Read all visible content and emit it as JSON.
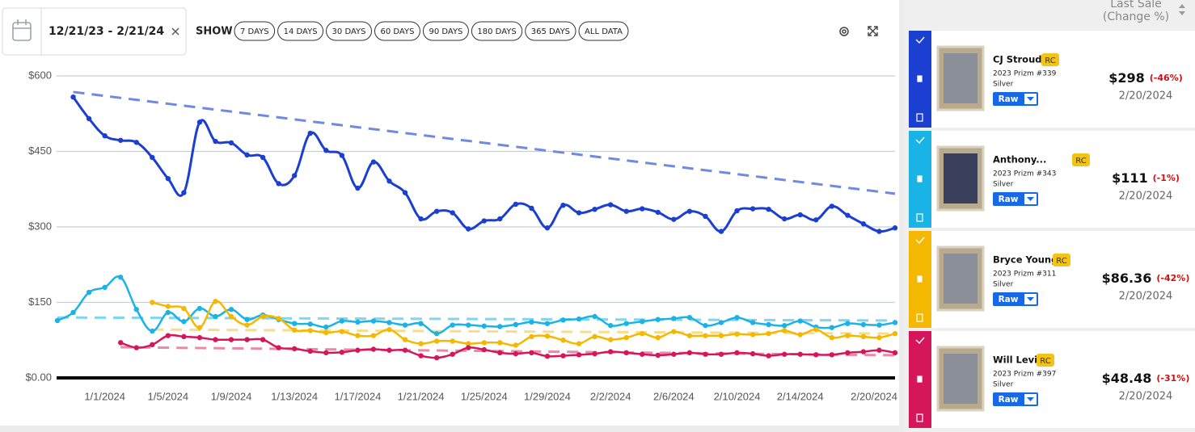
{
  "toolbar": {
    "date_range": "12/21/23 - 2/21/24",
    "show_label": "SHOW",
    "ranges": [
      "7 DAYS",
      "14 DAYS",
      "30 DAYS",
      "60 DAYS",
      "90 DAYS",
      "180 DAYS",
      "365 DAYS",
      "ALL DATA"
    ]
  },
  "panel": {
    "header": [
      "Last Sale",
      "(Change %)"
    ],
    "cards": [
      {
        "name": "CJ Stroud",
        "badge": "RC",
        "set": "2023 Prizm #339",
        "variant": "Silver",
        "grade": "Raw",
        "price": "$298",
        "change": "(-46%)",
        "date": "2/20/2024",
        "color": "#1a3fd1"
      },
      {
        "name": "Anthony...",
        "badge": "RC",
        "set": "2023 Prizm #343",
        "variant": "Silver",
        "grade": "Raw",
        "price": "$111",
        "change": "(-1%)",
        "date": "2/20/2024",
        "color": "#1ab3e6"
      },
      {
        "name": "Bryce Young",
        "badge": "RC",
        "set": "2023 Prizm #311",
        "variant": "Silver",
        "grade": "Raw",
        "price": "$86.36",
        "change": "(-42%)",
        "date": "2/20/2024",
        "color": "#f5b800"
      },
      {
        "name": "Will Levis",
        "badge": "RC",
        "set": "2023 Prizm #397",
        "variant": "Silver",
        "grade": "Raw",
        "price": "$48.48",
        "change": "(-31%)",
        "date": "2/20/2024",
        "color": "#d6165a"
      }
    ]
  },
  "chart_data": {
    "type": "line",
    "x": [
      "12/29/2023",
      "12/30/2023",
      "12/31/2023",
      "1/1/2024",
      "1/2/2024",
      "1/3/2024",
      "1/4/2024",
      "1/5/2024",
      "1/6/2024",
      "1/7/2024",
      "1/8/2024",
      "1/9/2024",
      "1/10/2024",
      "1/11/2024",
      "1/12/2024",
      "1/13/2024",
      "1/14/2024",
      "1/15/2024",
      "1/16/2024",
      "1/17/2024",
      "1/18/2024",
      "1/19/2024",
      "1/20/2024",
      "1/21/2024",
      "1/22/2024",
      "1/23/2024",
      "1/24/2024",
      "1/25/2024",
      "1/26/2024",
      "1/27/2024",
      "1/28/2024",
      "1/29/2024",
      "1/30/2024",
      "1/31/2024",
      "2/1/2024",
      "2/2/2024",
      "2/3/2024",
      "2/4/2024",
      "2/5/2024",
      "2/6/2024",
      "2/7/2024",
      "2/8/2024",
      "2/9/2024",
      "2/10/2024",
      "2/11/2024",
      "2/12/2024",
      "2/13/2024",
      "2/14/2024",
      "2/15/2024",
      "2/16/2024",
      "2/17/2024",
      "2/18/2024",
      "2/19/2024",
      "2/20/2024"
    ],
    "xlim": [
      "12/29/2023",
      "2/20/2024"
    ],
    "xticks": [
      "1/1/2024",
      "1/5/2024",
      "1/9/2024",
      "1/13/2024",
      "1/17/2024",
      "1/21/2024",
      "1/25/2024",
      "1/29/2024",
      "2/2/2024",
      "2/6/2024",
      "2/10/2024",
      "2/14/2024",
      "2/20/2024"
    ],
    "ylim": [
      0,
      600
    ],
    "yticks": [
      {
        "value": 0,
        "label": "$0.00"
      },
      {
        "value": 150,
        "label": "$150"
      },
      {
        "value": 300,
        "label": "$300"
      },
      {
        "value": 450,
        "label": "$450"
      },
      {
        "value": 600,
        "label": "$600"
      }
    ],
    "grid": true,
    "series": [
      {
        "color": "#1a3fd1",
        "trend_color": "#6f8ae0",
        "trend": [
          568,
          366
        ],
        "values": [
          null,
          558,
          515,
          481,
          472,
          468,
          438,
          396,
          368,
          508,
          470,
          467,
          443,
          438,
          386,
          402,
          486,
          452,
          442,
          377,
          429,
          391,
          368,
          316,
          331,
          328,
          296,
          312,
          316,
          345,
          337,
          298,
          343,
          328,
          335,
          344,
          331,
          336,
          329,
          315,
          331,
          321,
          291,
          332,
          336,
          335,
          316,
          324,
          314,
          341,
          323,
          306,
          291,
          298
        ]
      },
      {
        "color": "#1ab3e6",
        "trend_color": "#7fd6f0",
        "trend": [
          120,
          114
        ],
        "values": [
          114,
          130,
          170,
          180,
          200,
          136,
          93,
          130,
          112,
          138,
          122,
          136,
          116,
          125,
          116,
          108,
          107,
          101,
          113,
          111,
          113,
          110,
          105,
          108,
          88,
          105,
          105,
          103,
          102,
          106,
          111,
          108,
          115,
          117,
          122,
          104,
          108,
          112,
          116,
          118,
          120,
          104,
          110,
          120,
          110,
          106,
          104,
          113,
          101,
          100,
          108,
          106,
          105,
          110
        ]
      },
      {
        "color": "#f5b800",
        "trend_color": "#f7dc8a",
        "trend": [
          96,
          88
        ],
        "values": [
          null,
          null,
          null,
          null,
          null,
          null,
          150,
          142,
          138,
          100,
          152,
          122,
          105,
          122,
          118,
          95,
          94,
          90,
          92,
          84,
          84,
          96,
          76,
          68,
          73,
          73,
          68,
          70,
          70,
          65,
          82,
          83,
          75,
          68,
          82,
          76,
          80,
          88,
          80,
          92,
          84,
          84,
          84,
          87,
          86,
          88,
          94,
          86,
          96,
          80,
          84,
          82,
          80,
          88
        ]
      },
      {
        "color": "#d6165a",
        "trend_color": "#e88aa8",
        "trend": [
          61,
          45
        ],
        "values": [
          null,
          null,
          null,
          null,
          70,
          60,
          66,
          84,
          82,
          80,
          76,
          76,
          76,
          76,
          60,
          58,
          53,
          50,
          51,
          55,
          57,
          55,
          55,
          44,
          40,
          47,
          60,
          56,
          50,
          48,
          50,
          43,
          44,
          46,
          48,
          52,
          50,
          47,
          45,
          47,
          50,
          47,
          47,
          50,
          48,
          44,
          47,
          47,
          46,
          46,
          50,
          52,
          55,
          50
        ]
      }
    ]
  }
}
